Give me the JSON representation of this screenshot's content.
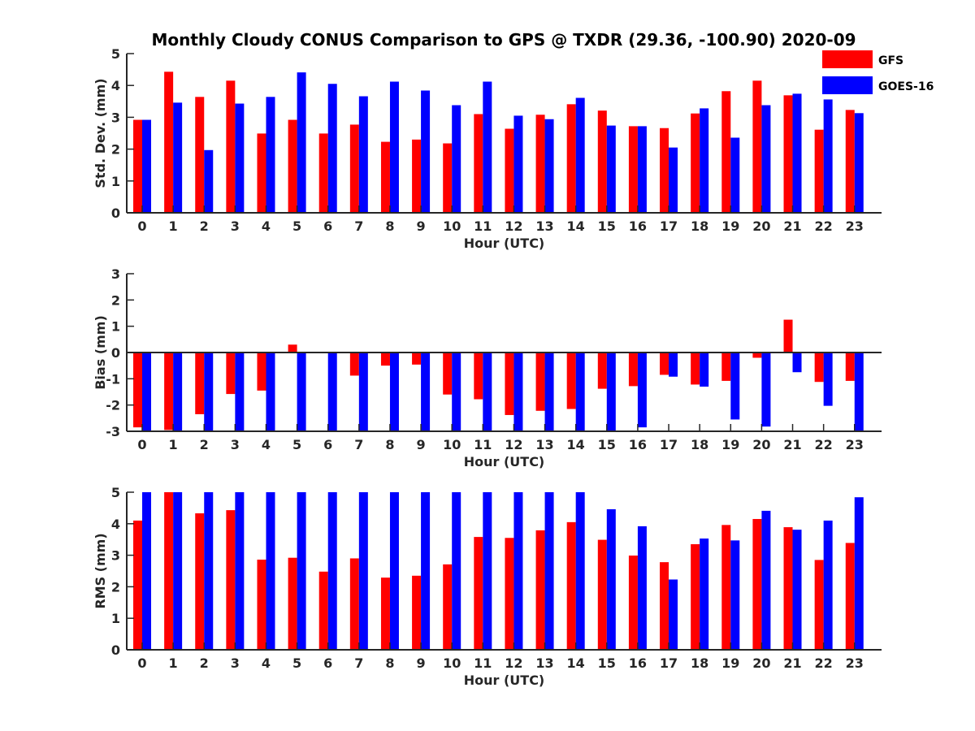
{
  "title": "Monthly Cloudy CONUS Comparison to GPS @ TXDR (29.36, -100.90) 2020-09",
  "legend": [
    {
      "name": "GFS",
      "color": "#ff0000"
    },
    {
      "name": "GOES-16",
      "color": "#0000ff"
    }
  ],
  "chart_data": [
    {
      "type": "bar",
      "xlabel": "Hour (UTC)",
      "ylabel": "Std. Dev. (mm)",
      "ylim": [
        0,
        5
      ],
      "yticks": [
        0,
        1,
        2,
        3,
        4,
        5
      ],
      "categories": [
        "0",
        "1",
        "2",
        "3",
        "4",
        "5",
        "6",
        "7",
        "8",
        "9",
        "10",
        "11",
        "12",
        "13",
        "14",
        "15",
        "16",
        "17",
        "18",
        "19",
        "20",
        "21",
        "22",
        "23"
      ],
      "series": [
        {
          "name": "GFS",
          "color": "#ff0000",
          "values": [
            2.92,
            4.43,
            3.64,
            4.15,
            2.49,
            2.92,
            2.49,
            2.77,
            2.23,
            2.3,
            2.18,
            3.1,
            2.64,
            3.08,
            3.41,
            3.21,
            2.72,
            2.66,
            3.12,
            3.82,
            4.15,
            3.69,
            2.61,
            3.23
          ]
        },
        {
          "name": "GOES-16",
          "color": "#0000ff",
          "values": [
            2.92,
            3.46,
            1.97,
            3.43,
            3.64,
            4.41,
            4.05,
            3.66,
            4.12,
            3.84,
            3.38,
            4.12,
            3.05,
            2.94,
            3.61,
            2.74,
            2.72,
            2.05,
            3.28,
            2.36,
            3.38,
            3.74,
            3.56,
            3.13
          ]
        }
      ]
    },
    {
      "type": "bar",
      "xlabel": "Hour (UTC)",
      "ylabel": "Bias (mm)",
      "ylim": [
        -3,
        3
      ],
      "yticks": [
        -3,
        -2,
        -1,
        0,
        1,
        2,
        3
      ],
      "categories": [
        "0",
        "1",
        "2",
        "3",
        "4",
        "5",
        "6",
        "7",
        "8",
        "9",
        "10",
        "11",
        "12",
        "13",
        "14",
        "15",
        "16",
        "17",
        "18",
        "19",
        "20",
        "21",
        "22",
        "23"
      ],
      "series": [
        {
          "name": "GFS",
          "color": "#ff0000",
          "values": [
            -2.85,
            -2.95,
            -2.35,
            -1.58,
            -1.45,
            0.3,
            0.02,
            -0.88,
            -0.5,
            -0.46,
            -1.6,
            -1.78,
            -2.38,
            -2.22,
            -2.15,
            -1.38,
            -1.28,
            -0.85,
            -1.22,
            -1.08,
            -0.2,
            1.25,
            -1.12,
            -1.08
          ]
        },
        {
          "name": "GOES-16",
          "color": "#0000ff",
          "values": [
            -3,
            -3,
            -3,
            -3,
            -3,
            -3,
            -3,
            -3,
            -3,
            -3,
            -3,
            -3,
            -3,
            -3,
            -3,
            -3,
            -2.85,
            -0.92,
            -1.3,
            -2.55,
            -2.82,
            -0.75,
            -2.03,
            -3
          ]
        }
      ]
    },
    {
      "type": "bar",
      "xlabel": "Hour (UTC)",
      "ylabel": "RMS (mm)",
      "ylim": [
        0,
        5
      ],
      "yticks": [
        0,
        1,
        2,
        3,
        4,
        5
      ],
      "categories": [
        "0",
        "1",
        "2",
        "3",
        "4",
        "5",
        "6",
        "7",
        "8",
        "9",
        "10",
        "11",
        "12",
        "13",
        "14",
        "15",
        "16",
        "17",
        "18",
        "19",
        "20",
        "21",
        "22",
        "23"
      ],
      "series": [
        {
          "name": "GFS",
          "color": "#ff0000",
          "values": [
            4.1,
            5,
            4.33,
            4.43,
            2.86,
            2.92,
            2.48,
            2.9,
            2.29,
            2.35,
            2.71,
            3.58,
            3.55,
            3.79,
            4.05,
            3.49,
            2.99,
            2.78,
            3.35,
            3.96,
            4.15,
            3.89,
            2.85,
            3.39
          ]
        },
        {
          "name": "GOES-16",
          "color": "#0000ff",
          "values": [
            5,
            5,
            5,
            5,
            5,
            5,
            5,
            5,
            5,
            5,
            5,
            5,
            5,
            5,
            5,
            4.46,
            3.92,
            2.23,
            3.53,
            3.47,
            4.41,
            3.81,
            4.1,
            4.84
          ]
        }
      ]
    }
  ]
}
